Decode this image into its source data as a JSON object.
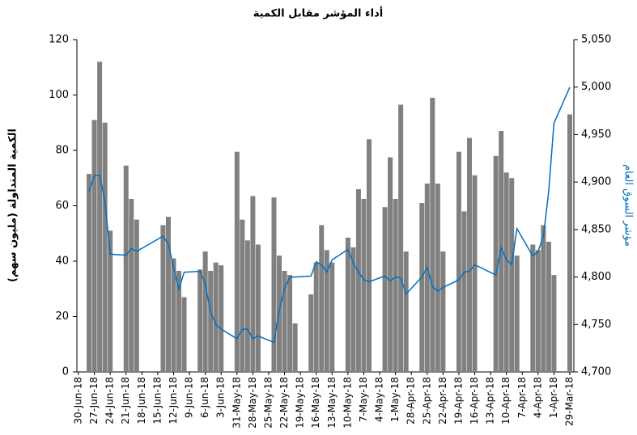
{
  "chart_data": {
    "type": "combo",
    "title": "أداء المؤشر مقابل الكمية",
    "ylabel": "الكمية المتداولة (مليون سهم)",
    "y2label": "مؤشر السوق العام",
    "x": [
      "28-Jun-18",
      "27-Jun-18",
      "26-Jun-18",
      "25-Jun-18",
      "24-Jun-18",
      "21-Jun-18",
      "20-Jun-18",
      "19-Jun-18",
      "14-Jun-18",
      "13-Jun-18",
      "12-Jun-18",
      "11-Jun-18",
      "10-Jun-18",
      "7-Jun-18",
      "6-Jun-18",
      "5-Jun-18",
      "4-Jun-18",
      "3-Jun-18",
      "31-May-18",
      "30-May-18",
      "29-May-18",
      "28-May-18",
      "27-May-18",
      "24-May-18",
      "23-May-18",
      "22-May-18",
      "21-May-18",
      "20-May-18",
      "17-May-18",
      "16-May-18",
      "15-May-18",
      "14-May-18",
      "13-May-18",
      "10-May-18",
      "9-May-18",
      "8-May-18",
      "7-May-18",
      "6-May-18",
      "3-May-18",
      "2-May-18",
      "1-May-18",
      "30-Apr-18",
      "29-Apr-18",
      "26-Apr-18",
      "25-Apr-18",
      "24-Apr-18",
      "23-Apr-18",
      "22-Apr-18",
      "19-Apr-18",
      "18-Apr-18",
      "17-Apr-18",
      "16-Apr-18",
      "12-Apr-18",
      "11-Apr-18",
      "10-Apr-18",
      "9-Apr-18",
      "8-Apr-18",
      "5-Apr-18",
      "4-Apr-18",
      "3-Apr-18",
      "2-Apr-18",
      "1-Apr-18",
      "29-Mar-18"
    ],
    "series": [
      {
        "type": "bar",
        "color": "#808080",
        "values": [
          71.5,
          91,
          112,
          90,
          51,
          74.5,
          62.5,
          55,
          53,
          56,
          41,
          36.5,
          27,
          37,
          43.5,
          36.5,
          39.5,
          38.5,
          79.5,
          55,
          47.5,
          63.5,
          46,
          63,
          42,
          36.5,
          35,
          17.5,
          28,
          39.5,
          53,
          44,
          39.5,
          48.5,
          45,
          66,
          62.5,
          84,
          59.5,
          77.5,
          62.5,
          96.5,
          43.5,
          61,
          68,
          99,
          68,
          43.5,
          79.5,
          58,
          84.5,
          71,
          78,
          87,
          72,
          70,
          42,
          46,
          44,
          53,
          47,
          35,
          93
        ]
      },
      {
        "type": "line",
        "color": "#0070c0",
        "axis": "y2",
        "values": [
          4890,
          4907,
          4907,
          4880,
          4824,
          4823,
          4830,
          4827,
          4843,
          4835,
          4810,
          4787,
          4805,
          4806,
          4793,
          4763,
          4750,
          4745,
          4735,
          4745,
          4745,
          4735,
          4738,
          4731,
          4765,
          4788,
          4800,
          4800,
          4801,
          4816,
          4813,
          4805,
          4818,
          4829,
          4815,
          4805,
          4797,
          4795,
          4801,
          4796,
          4800,
          4799,
          4782,
          4800,
          4810,
          4790,
          4785,
          4789,
          4797,
          4805,
          4806,
          4813,
          4802,
          4831,
          4818,
          4813,
          4851,
          4822,
          4827,
          4843,
          4890,
          4962,
          5000
        ]
      }
    ],
    "xlim": [
      "30-Jun-18",
      "29-Mar-18"
    ],
    "xticks": [
      "30-Jun-18",
      "27-Jun-18",
      "24-Jun-18",
      "21-Jun-18",
      "18-Jun-18",
      "15-Jun-18",
      "12-Jun-18",
      "9-Jun-18",
      "6-Jun-18",
      "3-Jun-18",
      "31-May-18",
      "28-May-18",
      "25-May-18",
      "22-May-18",
      "19-May-18",
      "16-May-18",
      "13-May-18",
      "10-May-18",
      "7-May-18",
      "4-May-18",
      "1-May-18",
      "28-Apr-18",
      "25-Apr-18",
      "22-Apr-18",
      "19-Apr-18",
      "16-Apr-18",
      "13-Apr-18",
      "10-Apr-18",
      "7-Apr-18",
      "4-Apr-18",
      "1-Apr-18",
      "29-Mar-18"
    ],
    "ylim": [
      0,
      120
    ],
    "yticks": [
      0,
      20,
      40,
      60,
      80,
      100,
      120
    ],
    "y2lim": [
      4700,
      5050
    ],
    "y2ticks": [
      {
        "value": 4700,
        "label": "4,700"
      },
      {
        "value": 4750,
        "label": "4,750"
      },
      {
        "value": 4800,
        "label": "4,800"
      },
      {
        "value": 4850,
        "label": "4,850"
      },
      {
        "value": 4900,
        "label": "4,900"
      },
      {
        "value": 4950,
        "label": "4,950"
      },
      {
        "value": 5000,
        "label": "5,000"
      },
      {
        "value": 5050,
        "label": "5,050"
      }
    ],
    "grid": false
  }
}
